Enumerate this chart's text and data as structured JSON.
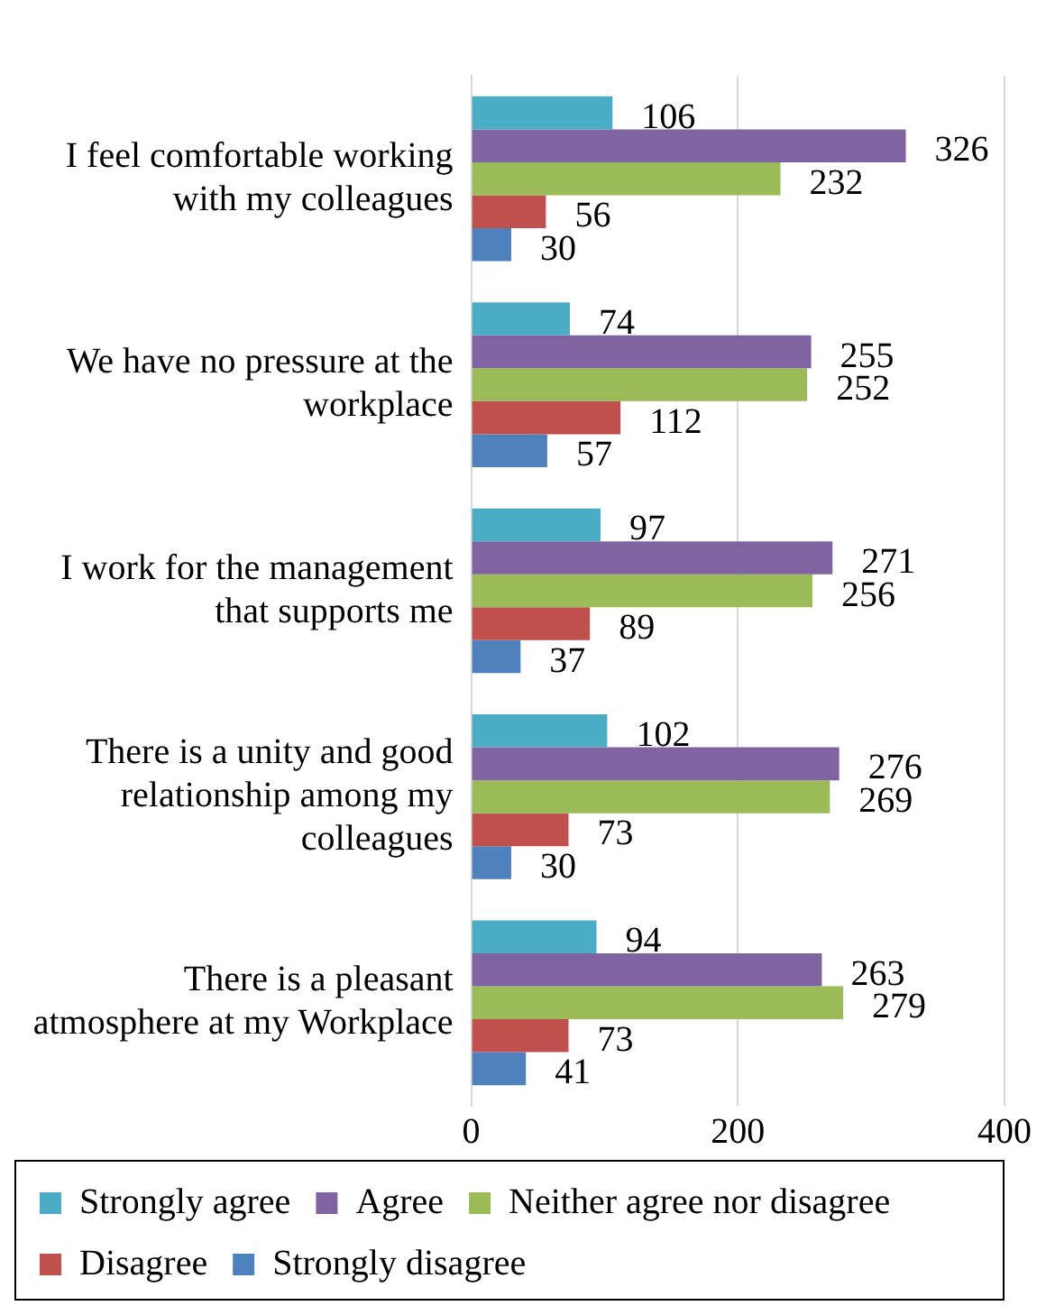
{
  "chart_data": {
    "type": "bar",
    "orientation": "horizontal",
    "categories": [
      "I feel comfortable working with my colleagues",
      "We have no pressure at the workplace",
      "I work for the management that supports me",
      "There is a unity and good relationship among my colleagues",
      "There is a pleasant atmosphere at my Workplace"
    ],
    "series": [
      {
        "name": "Strongly agree",
        "color": "#4bacc6",
        "values": [
          106,
          74,
          97,
          102,
          94
        ]
      },
      {
        "name": "Agree",
        "color": "#8064a2",
        "values": [
          326,
          255,
          271,
          276,
          263
        ]
      },
      {
        "name": "Neither agree nor disagree",
        "color": "#9bbb59",
        "values": [
          232,
          252,
          256,
          269,
          279
        ]
      },
      {
        "name": "Disagree",
        "color": "#c0504d",
        "values": [
          56,
          112,
          89,
          73,
          73
        ]
      },
      {
        "name": "Strongly disagree",
        "color": "#4f81bd",
        "values": [
          30,
          57,
          37,
          30,
          41
        ]
      }
    ],
    "xlim": [
      0,
      400
    ],
    "xticks": [
      0,
      200,
      400
    ],
    "grid": "x",
    "legend": "bottom",
    "data_labels": true
  }
}
